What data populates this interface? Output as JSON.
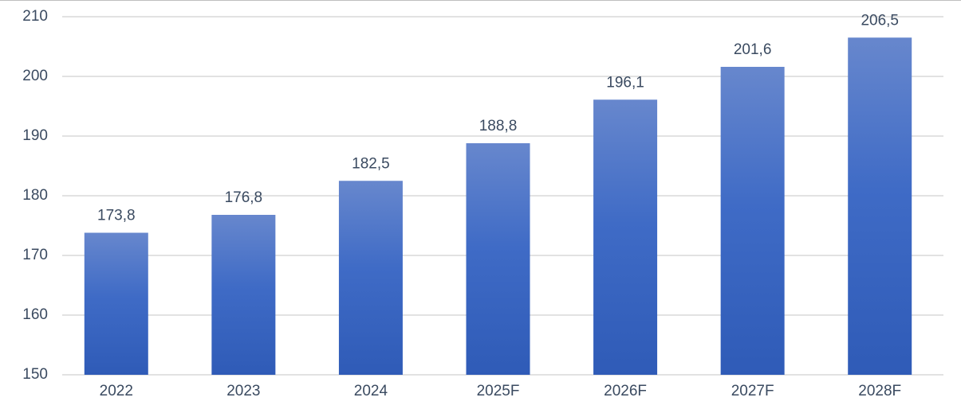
{
  "chart_data": {
    "type": "bar",
    "categories": [
      "2022",
      "2023",
      "2024",
      "2025F",
      "2026F",
      "2027F",
      "2028F"
    ],
    "values": [
      173.8,
      176.8,
      182.5,
      188.8,
      196.1,
      201.6,
      206.5
    ],
    "value_labels": [
      "173,8",
      "176,8",
      "182,5",
      "188,8",
      "196,1",
      "201,6",
      "206,5"
    ],
    "ylim": [
      150,
      210
    ],
    "yticks": [
      150,
      160,
      170,
      180,
      190,
      200,
      210
    ],
    "grid": true
  }
}
